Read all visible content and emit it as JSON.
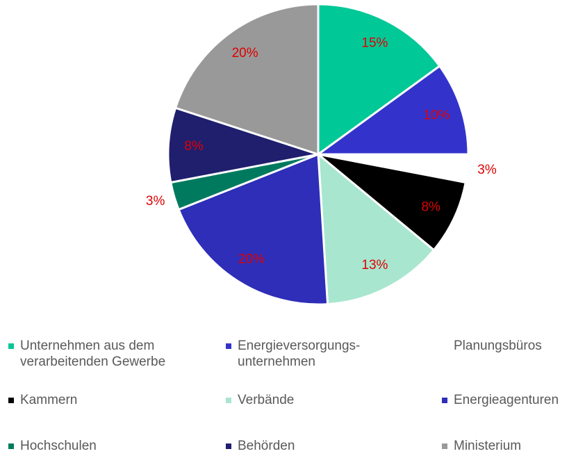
{
  "chart_data": {
    "type": "pie",
    "categories": [
      "Unternehmen aus dem verarbeitenden Gewerbe",
      "Energieversorgungs-unternehmen",
      "Planungsbüros",
      "Kammern",
      "Verbände",
      "Energieagenturen",
      "Hochschulen",
      "Behörden",
      "Ministerium"
    ],
    "values": [
      15,
      10,
      3,
      8,
      13,
      20,
      3,
      8,
      20
    ],
    "value_labels": [
      "15%",
      "10%",
      "3%",
      "8%",
      "13%",
      "20%",
      "3%",
      "8%",
      "20%"
    ],
    "colors": [
      "#00c896",
      "#3333cc",
      "#ffffff",
      "#000000",
      "#a8e6cf",
      "#2e2eb8",
      "#007a5e",
      "#1f1f6e",
      "#999999"
    ],
    "legend": "bottom"
  }
}
